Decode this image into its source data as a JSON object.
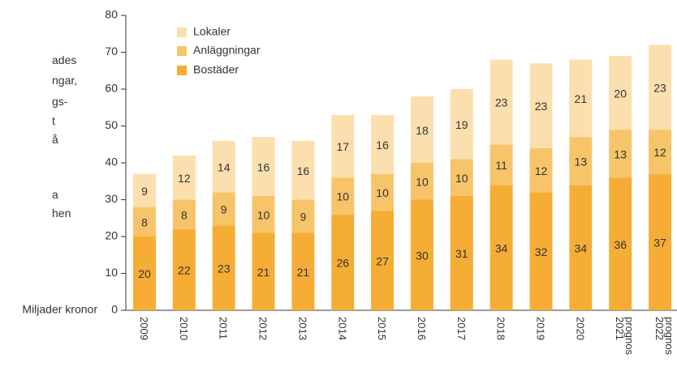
{
  "side_text": [
    "ades",
    "ngar,",
    "gs-",
    "t",
    "å",
    "a",
    "hen"
  ],
  "chart_data": {
    "type": "stacked_bar",
    "y_label": "Miljader kronor",
    "categories": [
      "2009",
      "2010",
      "2011",
      "2012",
      "2013",
      "2014",
      "2015",
      "2016",
      "2017",
      "2018",
      "2019",
      "2020",
      "2021 prognos",
      "2022 prognos"
    ],
    "series": [
      {
        "name": "Bostäder",
        "color": "#f5ad35",
        "values": [
          20,
          22,
          23,
          21,
          21,
          26,
          27,
          30,
          31,
          34,
          32,
          34,
          36,
          37
        ]
      },
      {
        "name": "Anläggningar",
        "color": "#f8c46a",
        "values": [
          8,
          8,
          9,
          10,
          9,
          10,
          10,
          10,
          10,
          11,
          12,
          13,
          13,
          12
        ]
      },
      {
        "name": "Lokaler",
        "color": "#fcdfae",
        "values": [
          9,
          12,
          14,
          16,
          16,
          17,
          16,
          18,
          19,
          23,
          23,
          21,
          20,
          23
        ]
      }
    ],
    "ylim": [
      0,
      80
    ],
    "yticks": [
      0,
      10,
      20,
      30,
      40,
      50,
      60,
      70,
      80
    ],
    "legend": "top-left"
  }
}
